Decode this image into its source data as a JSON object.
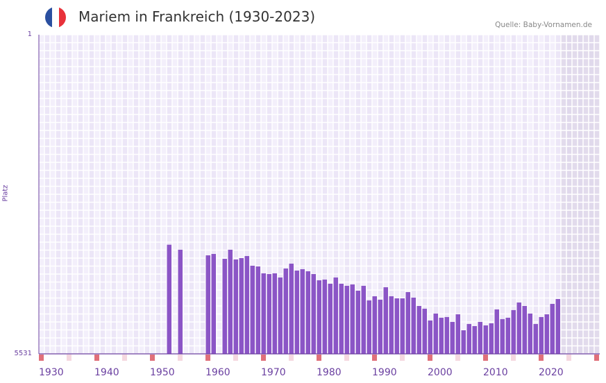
{
  "header": {
    "title": "Mariem in Frankreich (1930-2023)",
    "source": "Quelle: Baby-Vornamen.de",
    "flag_icon": "france-flag-icon",
    "flag_colors": [
      "#2a4fa0",
      "#ffffff",
      "#e8313a"
    ]
  },
  "chart_data": {
    "type": "bar",
    "title": "Mariem in Frankreich (1930-2023)",
    "xlabel": "",
    "ylabel": "Platz",
    "ylim": [
      5531,
      1
    ],
    "y_ticks": [
      "1",
      "5531"
    ],
    "x_ticks": [
      "1930",
      "1940",
      "1950",
      "1960",
      "1970",
      "1980",
      "1990",
      "2000",
      "2010",
      "2020"
    ],
    "xlim": [
      1928,
      2029
    ],
    "future_shaded_from": 2022,
    "bar_color": "#8b55c6",
    "x": [
      1951,
      1953,
      1958,
      1959,
      1961,
      1962,
      1963,
      1964,
      1965,
      1966,
      1967,
      1968,
      1969,
      1970,
      1971,
      1972,
      1973,
      1974,
      1975,
      1976,
      1977,
      1978,
      1979,
      1980,
      1981,
      1982,
      1983,
      1984,
      1985,
      1986,
      1987,
      1988,
      1989,
      1990,
      1991,
      1992,
      1993,
      1994,
      1995,
      1996,
      1997,
      1998,
      1999,
      2000,
      2001,
      2002,
      2003,
      2004,
      2005,
      2006,
      2007,
      2008,
      2009,
      2010,
      2011,
      2012,
      2013,
      2014,
      2015,
      2016,
      2017,
      2018,
      2019,
      2020,
      2021
    ],
    "values": [
      3640,
      3727,
      3824,
      3800,
      3884,
      3727,
      3896,
      3872,
      3836,
      4004,
      4016,
      4136,
      4148,
      4136,
      4208,
      4052,
      3968,
      4088,
      4064,
      4100,
      4148,
      4256,
      4244,
      4316,
      4208,
      4316,
      4352,
      4328,
      4436,
      4352,
      4605,
      4533,
      4593,
      4377,
      4533,
      4569,
      4569,
      4461,
      4557,
      4701,
      4749,
      4953,
      4833,
      4905,
      4893,
      4977,
      4845,
      5122,
      5014,
      5050,
      4977,
      5038,
      5002,
      4761,
      4929,
      4905,
      4773,
      4641,
      4701,
      4833,
      5014,
      4893,
      4845,
      4665,
      4581
    ]
  }
}
